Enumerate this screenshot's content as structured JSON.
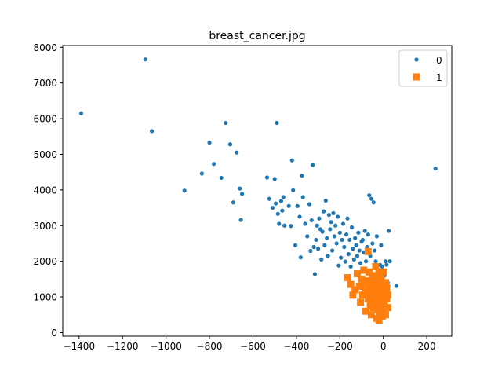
{
  "chart_data": {
    "type": "scatter",
    "title": "breast_cancer.jpg",
    "xlabel": "",
    "ylabel": "",
    "xlim": [
      -1475,
      315
    ],
    "ylim": [
      -100,
      8050
    ],
    "xticks": [
      -1400,
      -1200,
      -1000,
      -800,
      -600,
      -400,
      -200,
      0,
      200
    ],
    "yticks": [
      0,
      1000,
      2000,
      3000,
      4000,
      5000,
      6000,
      7000,
      8000
    ],
    "grid": false,
    "legend": "top-right",
    "series": [
      {
        "name": "0",
        "marker": "circle",
        "color": "#1f77b4",
        "points": [
          [
            -1390,
            6150
          ],
          [
            -1095,
            7660
          ],
          [
            -1065,
            5650
          ],
          [
            -915,
            3980
          ],
          [
            -835,
            4460
          ],
          [
            -800,
            5330
          ],
          [
            -780,
            4730
          ],
          [
            -745,
            4340
          ],
          [
            -725,
            5880
          ],
          [
            -705,
            5280
          ],
          [
            -690,
            3650
          ],
          [
            -675,
            5050
          ],
          [
            -660,
            4040
          ],
          [
            -655,
            3160
          ],
          [
            -650,
            3890
          ],
          [
            -535,
            4350
          ],
          [
            -525,
            3750
          ],
          [
            -510,
            3500
          ],
          [
            -500,
            4310
          ],
          [
            -495,
            3620
          ],
          [
            -490,
            5880
          ],
          [
            -485,
            3330
          ],
          [
            -480,
            3050
          ],
          [
            -470,
            3690
          ],
          [
            -465,
            3420
          ],
          [
            -460,
            3800
          ],
          [
            -455,
            3000
          ],
          [
            -435,
            3550
          ],
          [
            -425,
            2990
          ],
          [
            -420,
            4830
          ],
          [
            -415,
            3990
          ],
          [
            -405,
            2450
          ],
          [
            -395,
            3550
          ],
          [
            -385,
            3250
          ],
          [
            -380,
            2110
          ],
          [
            -375,
            4400
          ],
          [
            -370,
            3800
          ],
          [
            -360,
            3050
          ],
          [
            -350,
            2700
          ],
          [
            -340,
            3600
          ],
          [
            -335,
            2290
          ],
          [
            -330,
            3150
          ],
          [
            -325,
            4700
          ],
          [
            -320,
            2400
          ],
          [
            -315,
            1640
          ],
          [
            -310,
            2600
          ],
          [
            -305,
            3000
          ],
          [
            -300,
            2350
          ],
          [
            -295,
            3200
          ],
          [
            -290,
            2900
          ],
          [
            -285,
            2050
          ],
          [
            -280,
            2830
          ],
          [
            -275,
            3400
          ],
          [
            -270,
            2450
          ],
          [
            -265,
            3700
          ],
          [
            -260,
            2650
          ],
          [
            -255,
            2150
          ],
          [
            -250,
            3300
          ],
          [
            -245,
            2900
          ],
          [
            -240,
            3100
          ],
          [
            -235,
            2300
          ],
          [
            -230,
            3350
          ],
          [
            -225,
            2700
          ],
          [
            -220,
            3000
          ],
          [
            -215,
            2500
          ],
          [
            -210,
            3250
          ],
          [
            -205,
            1880
          ],
          [
            -200,
            2800
          ],
          [
            -195,
            2100
          ],
          [
            -190,
            2600
          ],
          [
            -185,
            3050
          ],
          [
            -180,
            2400
          ],
          [
            -175,
            1990
          ],
          [
            -170,
            2750
          ],
          [
            -165,
            3200
          ],
          [
            -160,
            2200
          ],
          [
            -155,
            2600
          ],
          [
            -150,
            1850
          ],
          [
            -145,
            2950
          ],
          [
            -140,
            2350
          ],
          [
            -135,
            2050
          ],
          [
            -130,
            2650
          ],
          [
            -125,
            2450
          ],
          [
            -120,
            2150
          ],
          [
            -115,
            2800
          ],
          [
            -110,
            2300
          ],
          [
            -105,
            1950
          ],
          [
            -100,
            2550
          ],
          [
            -95,
            2600
          ],
          [
            -90,
            2250
          ],
          [
            -85,
            2850
          ],
          [
            -80,
            2000
          ],
          [
            -75,
            2400
          ],
          [
            -70,
            2750
          ],
          [
            -65,
            3850
          ],
          [
            -60,
            2150
          ],
          [
            -55,
            3750
          ],
          [
            -50,
            2500
          ],
          [
            -45,
            3650
          ],
          [
            -40,
            2300
          ],
          [
            -35,
            2000
          ],
          [
            -30,
            2700
          ],
          [
            -25,
            1500
          ],
          [
            -20,
            1750
          ],
          [
            -15,
            1900
          ],
          [
            -10,
            2450
          ],
          [
            -5,
            1850
          ],
          [
            0,
            1700
          ],
          [
            5,
            1600
          ],
          [
            10,
            2000
          ],
          [
            15,
            1900
          ],
          [
            20,
            1400
          ],
          [
            25,
            2850
          ],
          [
            30,
            2000
          ],
          [
            60,
            1310
          ],
          [
            240,
            4600
          ]
        ]
      },
      {
        "name": "1",
        "marker": "square",
        "color": "#ff7f0e",
        "points": [
          [
            -165,
            1540
          ],
          [
            -130,
            1200
          ],
          [
            -120,
            1650
          ],
          [
            -110,
            1300
          ],
          [
            -105,
            850
          ],
          [
            -100,
            1500
          ],
          [
            -95,
            1050
          ],
          [
            -90,
            1750
          ],
          [
            -85,
            1350
          ],
          [
            -80,
            600
          ],
          [
            -80,
            1150
          ],
          [
            -75,
            1450
          ],
          [
            -70,
            2270
          ],
          [
            -70,
            950
          ],
          [
            -65,
            1250
          ],
          [
            -65,
            1700
          ],
          [
            -60,
            750
          ],
          [
            -60,
            1050
          ],
          [
            -55,
            1400
          ],
          [
            -55,
            500
          ],
          [
            -50,
            1600
          ],
          [
            -50,
            900
          ],
          [
            -45,
            1200
          ],
          [
            -45,
            700
          ],
          [
            -40,
            1500
          ],
          [
            -40,
            1000
          ],
          [
            -35,
            1300
          ],
          [
            -35,
            1850
          ],
          [
            -30,
            400
          ],
          [
            -30,
            800
          ],
          [
            -30,
            1100
          ],
          [
            -25,
            1450
          ],
          [
            -25,
            650
          ],
          [
            -20,
            1650
          ],
          [
            -20,
            950
          ],
          [
            -20,
            350
          ],
          [
            -15,
            1250
          ],
          [
            -15,
            550
          ],
          [
            -10,
            1050
          ],
          [
            -10,
            1500
          ],
          [
            -10,
            750
          ],
          [
            -5,
            1300
          ],
          [
            -5,
            450
          ],
          [
            0,
            1000
          ],
          [
            0,
            1700
          ],
          [
            0,
            600
          ],
          [
            5,
            1150
          ],
          [
            5,
            850
          ],
          [
            10,
            1400
          ],
          [
            10,
            500
          ],
          [
            15,
            950
          ],
          [
            15,
            1250
          ],
          [
            20,
            700
          ],
          [
            20,
            1050
          ],
          [
            -150,
            1350
          ],
          [
            -140,
            1050
          ]
        ]
      }
    ]
  }
}
